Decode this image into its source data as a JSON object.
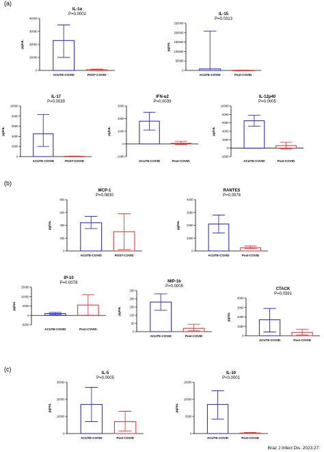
{
  "panels": [
    "(a)",
    "(b)",
    "(c)"
  ],
  "footer": "Braz J Infect Dis. 2023;27:",
  "colors": {
    "acute": "#2e2ec8",
    "post": "#d93a3a",
    "axis": "#000000"
  },
  "chart_data": [
    {
      "type": "bar",
      "title": "IL-1α",
      "p": "P=0.0002",
      "ylabel": "pg/mL",
      "ylim": [
        0,
        40000
      ],
      "ticks": [
        0,
        10000,
        20000,
        30000,
        40000
      ],
      "categories": [
        "ACUTE-COVID",
        "POST-COVID"
      ],
      "values": [
        23000,
        500
      ],
      "err_low": [
        10000,
        0
      ],
      "err_high": [
        35000,
        1000
      ]
    },
    {
      "type": "bar",
      "title": "IL-15",
      "p": "P=0.0313",
      "ylabel": "pg/mL",
      "ylim": [
        0,
        250000
      ],
      "ticks": [
        0,
        50000,
        100000,
        150000,
        200000,
        250000
      ],
      "categories": [
        "ACUTE-COVID",
        "Post-COVID"
      ],
      "values": [
        8000,
        800
      ],
      "err_low": [
        0,
        0
      ],
      "err_high": [
        208000,
        1500
      ]
    },
    {
      "type": "bar",
      "title": "IL-17",
      "p": "P=0.0039",
      "ylabel": "pg/mL",
      "ylim": [
        0,
        10000
      ],
      "ticks": [
        0,
        2000,
        4000,
        6000,
        8000,
        10000
      ],
      "categories": [
        "ACUTE-COVID",
        "POST-COVID"
      ],
      "values": [
        4500,
        50
      ],
      "err_low": [
        2000,
        0
      ],
      "err_high": [
        8300,
        100
      ]
    },
    {
      "type": "bar",
      "title": "IFN-α2",
      "p": "P=0.0039",
      "ylabel": "pg/mL",
      "ylim": [
        -1000,
        3000
      ],
      "ticks": [
        -1000,
        0,
        1000,
        2000,
        3000
      ],
      "categories": [
        "ACUTE-COVID",
        "Post-COVID"
      ],
      "values": [
        1800,
        50
      ],
      "err_low": [
        1100,
        -50
      ],
      "err_high": [
        2500,
        200
      ]
    },
    {
      "type": "bar",
      "title": "IL-12p40",
      "p": "P=0.0005",
      "ylabel": "pg/mL",
      "ylim": [
        -2000,
        10000
      ],
      "ticks": [
        -2000,
        0,
        2000,
        4000,
        6000,
        8000,
        10000
      ],
      "categories": [
        "ACUTE-COVID",
        "Post-COVID"
      ],
      "values": [
        6500,
        600
      ],
      "err_low": [
        5200,
        -200
      ],
      "err_high": [
        7800,
        1400
      ]
    },
    {
      "type": "bar",
      "title": "MCP-1",
      "p": "P=0.0830",
      "ylabel": "pg/mL",
      "ylim": [
        0,
        800
      ],
      "ticks": [
        0,
        200,
        400,
        600,
        800
      ],
      "categories": [
        "ACUTE-COVID",
        "POST-COVID"
      ],
      "values": [
        440,
        300
      ],
      "err_low": [
        350,
        20
      ],
      "err_high": [
        540,
        580
      ]
    },
    {
      "type": "bar",
      "title": "RANTES",
      "p": "P=0.0078",
      "ylabel": "pg/mL",
      "ylim": [
        0,
        4000
      ],
      "ticks": [
        0,
        1000,
        2000,
        3000,
        4000
      ],
      "categories": [
        "ACUTE-COVID",
        "Post-COVID"
      ],
      "values": [
        2100,
        250
      ],
      "err_low": [
        1400,
        200
      ],
      "err_high": [
        2800,
        380
      ]
    },
    {
      "type": "bar",
      "title": "IP-10",
      "p": "P=0.0078",
      "ylabel": "pg/mL",
      "ylim": [
        -5000,
        15000
      ],
      "ticks": [
        -5000,
        0,
        5000,
        10000,
        15000
      ],
      "categories": [
        "ACUTE-COVID",
        "Post-COVID"
      ],
      "values": [
        1000,
        5500
      ],
      "err_low": [
        500,
        0
      ],
      "err_high": [
        1600,
        11000
      ]
    },
    {
      "type": "bar",
      "title": "MIP-1b",
      "p": "P=0.0005",
      "ylabel": "pg/mL",
      "ylim": [
        0,
        250
      ],
      "ticks": [
        0,
        50,
        100,
        150,
        200,
        250
      ],
      "categories": [
        "ACUTE-COVID",
        "Post-COVID"
      ],
      "values": [
        180,
        20
      ],
      "err_low": [
        130,
        5
      ],
      "err_high": [
        230,
        45
      ]
    },
    {
      "type": "bar",
      "title": "CTACK",
      "p": "P=0.0391",
      "ylabel": "pg/mL",
      "ylim": [
        0,
        4000
      ],
      "ticks": [
        0,
        1000,
        2000,
        3000,
        4000
      ],
      "categories": [
        "ACUTE-COVID",
        "Post-COVID"
      ],
      "values": [
        1700,
        350
      ],
      "err_low": [
        400,
        80
      ],
      "err_high": [
        2900,
        680
      ]
    },
    {
      "type": "bar",
      "title": "IL-5",
      "p": "P=0.0005",
      "ylabel": "pg/mL",
      "ylim": [
        0,
        30000
      ],
      "ticks": [
        0,
        10000,
        20000,
        30000
      ],
      "categories": [
        "ACUTE-COVID",
        "Post-COVID"
      ],
      "values": [
        17000,
        7000
      ],
      "err_low": [
        7000,
        1500
      ],
      "err_high": [
        27000,
        13000
      ]
    },
    {
      "type": "bar",
      "title": "IL-10",
      "p": "P<0.0001",
      "ylabel": "pg/mL",
      "ylim": [
        0,
        15000
      ],
      "ticks": [
        0,
        5000,
        10000,
        15000
      ],
      "categories": [
        "ACUTE-COVID",
        "Post-COVID"
      ],
      "values": [
        8500,
        150
      ],
      "err_low": [
        4200,
        50
      ],
      "err_high": [
        12500,
        300
      ]
    }
  ]
}
